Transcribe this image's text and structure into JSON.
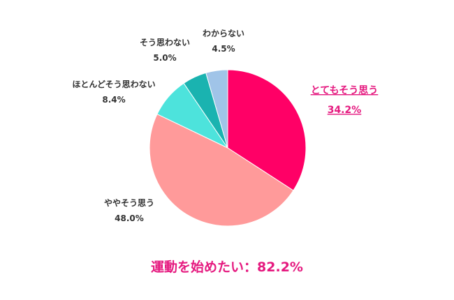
{
  "chart_data": {
    "type": "pie",
    "categories": [
      "とてもそう思う",
      "ややそう思う",
      "ほとんどそう思わない",
      "そう思わない",
      "わからない"
    ],
    "values": [
      34.2,
      48.0,
      8.4,
      5.0,
      4.5
    ],
    "value_labels": [
      "34.2%",
      "48.0%",
      "8.4%",
      "5.0%",
      "4.5%"
    ],
    "colors": [
      "#ff0066",
      "#ff9a9a",
      "#4de3dc",
      "#1ab3b0",
      "#a0c4e8"
    ],
    "start_angle_deg": 0,
    "direction": "clockwise",
    "highlighted_category": "とてもそう思う",
    "annotation": "運動を始めたい：82.2%"
  },
  "colors": {
    "accent": "#e5197f",
    "label_text": "#333333"
  }
}
